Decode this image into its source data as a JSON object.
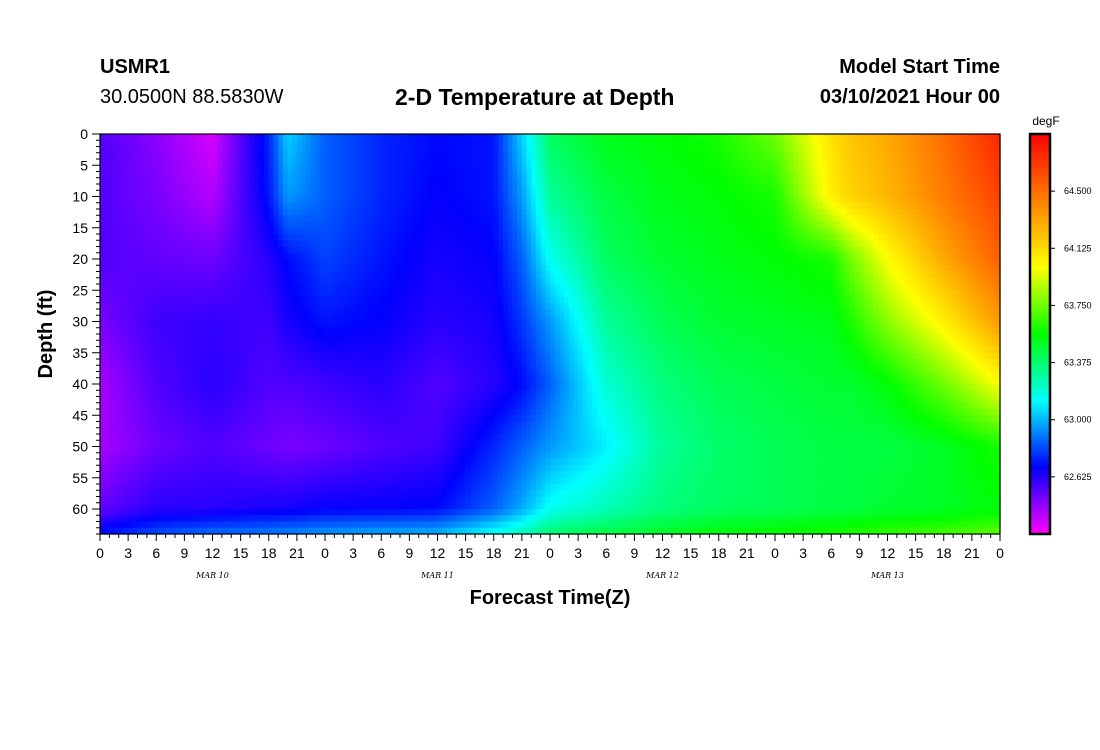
{
  "header": {
    "station_id": "USMR1",
    "coordinates": "30.0500N 88.5830W",
    "title": "2-D Temperature at Depth",
    "start_label": "Model Start Time",
    "start_value": "03/10/2021 Hour 00"
  },
  "chart_data": {
    "type": "heatmap",
    "title": "2-D Temperature at Depth",
    "xlabel": "Forecast Time(Z)",
    "ylabel": "Depth (ft)",
    "x_tick_labels": [
      "0",
      "3",
      "6",
      "9",
      "12",
      "15",
      "18",
      "21",
      "0",
      "3",
      "6",
      "9",
      "12",
      "15",
      "18",
      "21",
      "0",
      "3",
      "6",
      "9",
      "12",
      "15",
      "18",
      "21",
      "0",
      "3",
      "6",
      "9",
      "12",
      "15",
      "18",
      "21",
      "0"
    ],
    "x_range_hours": [
      0,
      96
    ],
    "date_labels": [
      {
        "hour": 12,
        "text": "MAR 10"
      },
      {
        "hour": 36,
        "text": "MAR 11"
      },
      {
        "hour": 60,
        "text": "MAR 12"
      },
      {
        "hour": 84,
        "text": "MAR 13"
      }
    ],
    "y_ticks": [
      0,
      5,
      10,
      15,
      20,
      25,
      30,
      35,
      40,
      45,
      50,
      55,
      60
    ],
    "y_range": [
      0,
      64
    ],
    "colorbar": {
      "unit": "degF",
      "range": [
        62.25,
        64.875
      ],
      "tick_labels": [
        "62.625",
        "63.000",
        "63.375",
        "63.750",
        "64.125",
        "64.500"
      ],
      "colors": [
        "#ff00ff",
        "#0000ff",
        "#00ffff",
        "#00ff00",
        "#ffff00",
        "#ff8000",
        "#ff0000"
      ]
    },
    "field": {
      "columns_hours": [
        0,
        6,
        12,
        18,
        20,
        24,
        30,
        36,
        42,
        45,
        48,
        54,
        60,
        66,
        72,
        78,
        80,
        84,
        90,
        96
      ],
      "rows_depth": [
        0,
        10,
        20,
        30,
        40,
        50,
        60,
        64
      ],
      "values": [
        [
          62.55,
          62.45,
          62.32,
          62.75,
          63.05,
          62.85,
          62.75,
          62.7,
          62.72,
          63.05,
          63.4,
          63.52,
          63.55,
          63.6,
          63.75,
          64.1,
          64.2,
          64.3,
          64.5,
          64.75
        ],
        [
          62.55,
          62.48,
          62.38,
          62.72,
          62.95,
          62.85,
          62.75,
          62.68,
          62.72,
          62.95,
          63.3,
          63.45,
          63.52,
          63.55,
          63.6,
          64.05,
          64.15,
          64.25,
          64.45,
          64.65
        ],
        [
          62.55,
          62.52,
          62.5,
          62.62,
          62.7,
          62.8,
          62.72,
          62.65,
          62.68,
          62.85,
          63.15,
          63.4,
          63.48,
          63.52,
          63.55,
          63.6,
          63.75,
          64.0,
          64.3,
          64.55
        ],
        [
          62.48,
          62.58,
          62.6,
          62.58,
          62.65,
          62.72,
          62.68,
          62.62,
          62.65,
          62.78,
          62.95,
          63.3,
          63.42,
          63.48,
          63.5,
          63.52,
          63.6,
          63.8,
          64.05,
          64.35
        ],
        [
          62.4,
          62.55,
          62.62,
          62.55,
          62.55,
          62.58,
          62.62,
          62.55,
          62.62,
          62.7,
          62.85,
          63.2,
          63.35,
          63.42,
          63.45,
          63.48,
          63.48,
          63.55,
          63.75,
          64.0
        ],
        [
          62.4,
          62.5,
          62.55,
          62.5,
          62.48,
          62.5,
          62.55,
          62.58,
          62.75,
          62.85,
          62.95,
          63.1,
          63.3,
          63.38,
          63.42,
          63.45,
          63.45,
          63.45,
          63.5,
          63.6
        ],
        [
          62.52,
          62.62,
          62.62,
          62.65,
          62.65,
          62.68,
          62.68,
          62.7,
          62.85,
          62.98,
          63.15,
          63.25,
          63.35,
          63.4,
          63.42,
          63.45,
          63.45,
          63.48,
          63.5,
          63.55
        ],
        [
          62.72,
          62.82,
          62.88,
          62.9,
          62.92,
          62.95,
          62.98,
          63.0,
          63.15,
          63.25,
          63.38,
          63.45,
          63.5,
          63.55,
          63.58,
          63.6,
          63.62,
          63.65,
          63.68,
          63.72
        ]
      ]
    },
    "grid": false,
    "legend": "colorbar-right"
  }
}
